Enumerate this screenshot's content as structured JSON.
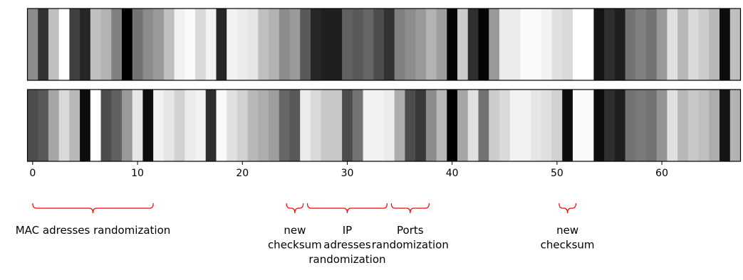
{
  "chart_data": {
    "type": "heatmap",
    "colormap": "gray",
    "cells": 68,
    "xlim": [
      -0.5,
      67.5
    ],
    "xticks": [
      0,
      10,
      20,
      30,
      40,
      50,
      60
    ],
    "rows": [
      {
        "name": "",
        "values": [
          0.55,
          0.2,
          0.75,
          1.0,
          0.25,
          0.15,
          0.75,
          0.7,
          0.5,
          0.0,
          0.45,
          0.55,
          0.6,
          0.75,
          0.95,
          0.98,
          0.85,
          0.95,
          0.15,
          0.95,
          0.92,
          0.9,
          0.75,
          0.7,
          0.55,
          0.6,
          0.35,
          0.15,
          0.12,
          0.12,
          0.38,
          0.35,
          0.4,
          0.3,
          0.2,
          0.5,
          0.55,
          0.6,
          0.7,
          0.62,
          0.02,
          0.8,
          0.18,
          0.02,
          0.6,
          0.92,
          0.92,
          0.98,
          0.98,
          0.95,
          0.88,
          0.85,
          1.0,
          1.0,
          0.08,
          0.18,
          0.12,
          0.45,
          0.5,
          0.45,
          0.6,
          0.88,
          0.72,
          0.85,
          0.8,
          0.72,
          0.05,
          0.75
        ]
      },
      {
        "name": "",
        "values": [
          0.3,
          0.35,
          0.65,
          0.85,
          0.72,
          0.05,
          1.0,
          0.3,
          0.38,
          0.6,
          0.9,
          0.05,
          0.95,
          0.9,
          0.82,
          0.92,
          0.95,
          0.18,
          0.98,
          0.88,
          0.82,
          0.72,
          0.68,
          0.62,
          0.4,
          0.35,
          0.92,
          0.85,
          0.78,
          0.78,
          0.3,
          0.45,
          0.95,
          0.95,
          0.92,
          0.68,
          0.3,
          0.22,
          0.55,
          0.72,
          0.0,
          0.65,
          0.88,
          0.45,
          0.8,
          0.85,
          0.95,
          0.95,
          0.9,
          0.88,
          0.82,
          0.05,
          0.98,
          0.98,
          0.05,
          0.18,
          0.12,
          0.45,
          0.48,
          0.45,
          0.58,
          0.88,
          0.72,
          0.78,
          0.75,
          0.68,
          0.08,
          0.7
        ]
      }
    ],
    "annotations": [
      {
        "text_lines": [
          "MAC adresses randomization"
        ],
        "from": 0,
        "to": 11.5
      },
      {
        "text_lines": [
          "new",
          "checksum"
        ],
        "from": 24.2,
        "to": 25.8
      },
      {
        "text_lines": [
          "IP",
          "adresses",
          "randomization"
        ],
        "from": 26.2,
        "to": 33.8
      },
      {
        "text_lines": [
          "Ports",
          "randomization"
        ],
        "from": 34.2,
        "to": 37.8
      },
      {
        "text_lines": [
          "new",
          "checksum"
        ],
        "from": 50.2,
        "to": 51.8
      }
    ],
    "annotation_color": "#ff0000"
  }
}
